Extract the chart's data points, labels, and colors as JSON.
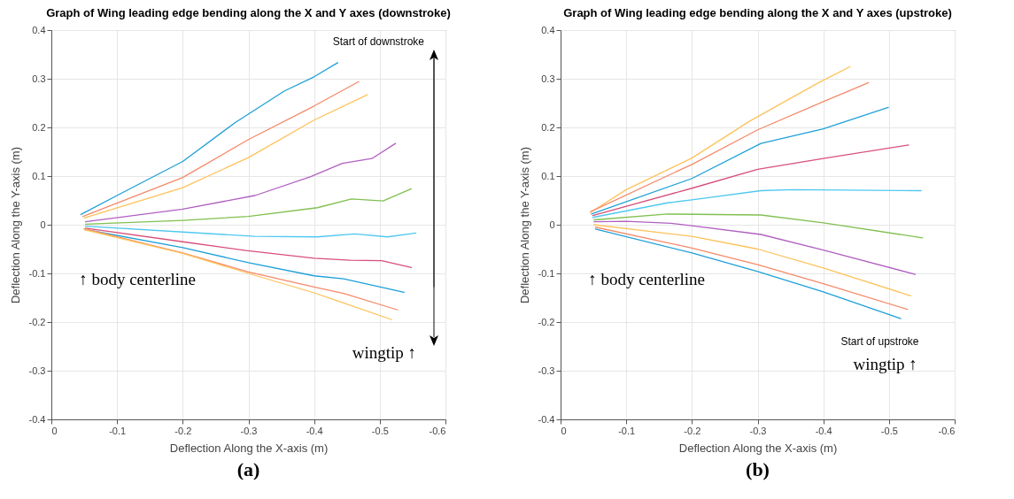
{
  "chart_data": [
    {
      "type": "line",
      "title": "Graph of Wing leading edge bending along the X and Y axes (downstroke)",
      "xlabel": "Deflection Along the X-axis (m)",
      "ylabel": "Deflection Along the Y-axis (m)",
      "xlim": [
        0,
        -0.6
      ],
      "ylim": [
        -0.4,
        0.4
      ],
      "xticks": [
        0,
        -0.1,
        -0.2,
        -0.3,
        -0.4,
        -0.5,
        -0.6
      ],
      "yticks": [
        -0.4,
        -0.3,
        -0.2,
        -0.1,
        0,
        0.1,
        0.2,
        0.3,
        0.4
      ],
      "grid": true,
      "annotations": [
        "Start of downstroke",
        "↑ body centerline",
        "wingtip ↑",
        "(a)"
      ],
      "series": [
        {
          "color": "#1ea0d8",
          "x": [
            -0.045,
            -0.107,
            -0.2,
            -0.28,
            -0.355,
            -0.4,
            -0.436
          ],
          "values": [
            0.021,
            0.065,
            0.13,
            0.21,
            0.275,
            0.304,
            0.333
          ]
        },
        {
          "color": "#f58a6a",
          "x": [
            -0.048,
            -0.2,
            -0.3,
            -0.4,
            -0.468
          ],
          "values": [
            0.017,
            0.097,
            0.175,
            0.244,
            0.294
          ]
        },
        {
          "color": "#fdc25a",
          "x": [
            -0.05,
            -0.2,
            -0.3,
            -0.4,
            -0.481
          ],
          "values": [
            0.014,
            0.076,
            0.138,
            0.215,
            0.267
          ]
        },
        {
          "color": "#b060c0",
          "x": [
            -0.052,
            -0.2,
            -0.31,
            -0.395,
            -0.443,
            -0.488,
            -0.524
          ],
          "values": [
            0.006,
            0.032,
            0.06,
            0.099,
            0.126,
            0.136,
            0.167
          ]
        },
        {
          "color": "#80c050",
          "x": [
            -0.052,
            -0.2,
            -0.3,
            -0.405,
            -0.457,
            -0.505,
            -0.548
          ],
          "values": [
            0.001,
            0.009,
            0.017,
            0.035,
            0.053,
            0.049,
            0.074
          ]
        },
        {
          "color": "#50c8f0",
          "x": [
            -0.052,
            -0.2,
            -0.31,
            -0.405,
            -0.462,
            -0.512,
            -0.555
          ],
          "values": [
            -0.003,
            -0.015,
            -0.024,
            -0.025,
            -0.019,
            -0.025,
            -0.017
          ]
        },
        {
          "color": "#d8507a",
          "x": [
            -0.052,
            -0.2,
            -0.296,
            -0.4,
            -0.455,
            -0.503,
            -0.548
          ],
          "values": [
            -0.007,
            -0.035,
            -0.053,
            -0.069,
            -0.073,
            -0.074,
            -0.088
          ]
        },
        {
          "color": "#1ea0d8",
          "x": [
            -0.052,
            -0.2,
            -0.3,
            -0.4,
            -0.445,
            -0.537
          ],
          "values": [
            -0.01,
            -0.047,
            -0.078,
            -0.105,
            -0.111,
            -0.139
          ]
        },
        {
          "color": "#f58a6a",
          "x": [
            -0.05,
            -0.2,
            -0.3,
            -0.4,
            -0.445,
            -0.527
          ],
          "values": [
            -0.008,
            -0.058,
            -0.097,
            -0.128,
            -0.141,
            -0.175
          ]
        },
        {
          "color": "#fdc25a",
          "x": [
            -0.05,
            -0.2,
            -0.3,
            -0.4,
            -0.435,
            -0.518
          ],
          "values": [
            -0.01,
            -0.059,
            -0.1,
            -0.14,
            -0.156,
            -0.195
          ]
        }
      ]
    },
    {
      "type": "line",
      "title": "Graph of Wing leading edge bending along the X and Y axes (upstroke)",
      "xlabel": "Deflection Along the X-axis (m)",
      "ylabel": "Deflection Along the Y-axis (m)",
      "xlim": [
        0,
        -0.6
      ],
      "ylim": [
        -0.4,
        0.4
      ],
      "xticks": [
        0,
        -0.1,
        -0.2,
        -0.3,
        -0.4,
        -0.5,
        -0.6
      ],
      "yticks": [
        -0.4,
        -0.3,
        -0.2,
        -0.1,
        0,
        0.1,
        0.2,
        0.3,
        0.4
      ],
      "grid": true,
      "annotations": [
        "Start of upstroke",
        "↑ body centerline",
        "wingtip ↑",
        "(b)"
      ],
      "series": [
        {
          "color": "#fdc25a",
          "x": [
            -0.045,
            -0.1,
            -0.2,
            -0.288,
            -0.393,
            -0.441
          ],
          "values": [
            0.025,
            0.072,
            0.137,
            0.213,
            0.292,
            0.325
          ]
        },
        {
          "color": "#f58a6a",
          "x": [
            -0.046,
            -0.2,
            -0.3,
            -0.4,
            -0.469
          ],
          "values": [
            0.027,
            0.124,
            0.195,
            0.253,
            0.292
          ]
        },
        {
          "color": "#1ea0d8",
          "x": [
            -0.047,
            -0.2,
            -0.305,
            -0.4,
            -0.499
          ],
          "values": [
            0.022,
            0.095,
            0.167,
            0.197,
            0.241
          ]
        },
        {
          "color": "#d8507a",
          "x": [
            -0.049,
            -0.2,
            -0.3,
            -0.4,
            -0.53
          ],
          "values": [
            0.019,
            0.075,
            0.114,
            0.136,
            0.164
          ]
        },
        {
          "color": "#50c8f0",
          "x": [
            -0.049,
            -0.163,
            -0.2,
            -0.305,
            -0.354,
            -0.549
          ],
          "values": [
            0.015,
            0.045,
            0.051,
            0.07,
            0.072,
            0.07
          ]
        },
        {
          "color": "#80c050",
          "x": [
            -0.051,
            -0.163,
            -0.305,
            -0.4,
            -0.551
          ],
          "values": [
            0.01,
            0.022,
            0.02,
            0.004,
            -0.027
          ]
        },
        {
          "color": "#b060c0",
          "x": [
            -0.051,
            -0.1,
            -0.168,
            -0.2,
            -0.305,
            -0.4,
            -0.54
          ],
          "values": [
            0.006,
            0.007,
            0.003,
            -0.002,
            -0.02,
            -0.052,
            -0.102
          ]
        },
        {
          "color": "#fdc25a",
          "x": [
            -0.051,
            -0.2,
            -0.3,
            -0.4,
            -0.533
          ],
          "values": [
            0.0,
            -0.024,
            -0.05,
            -0.089,
            -0.146
          ]
        },
        {
          "color": "#f58a6a",
          "x": [
            -0.053,
            -0.2,
            -0.3,
            -0.4,
            -0.528
          ],
          "values": [
            -0.005,
            -0.048,
            -0.082,
            -0.121,
            -0.174
          ]
        },
        {
          "color": "#1ea0d8",
          "x": [
            -0.053,
            -0.2,
            -0.3,
            -0.4,
            -0.518
          ],
          "values": [
            -0.009,
            -0.058,
            -0.096,
            -0.138,
            -0.193
          ]
        }
      ]
    }
  ]
}
